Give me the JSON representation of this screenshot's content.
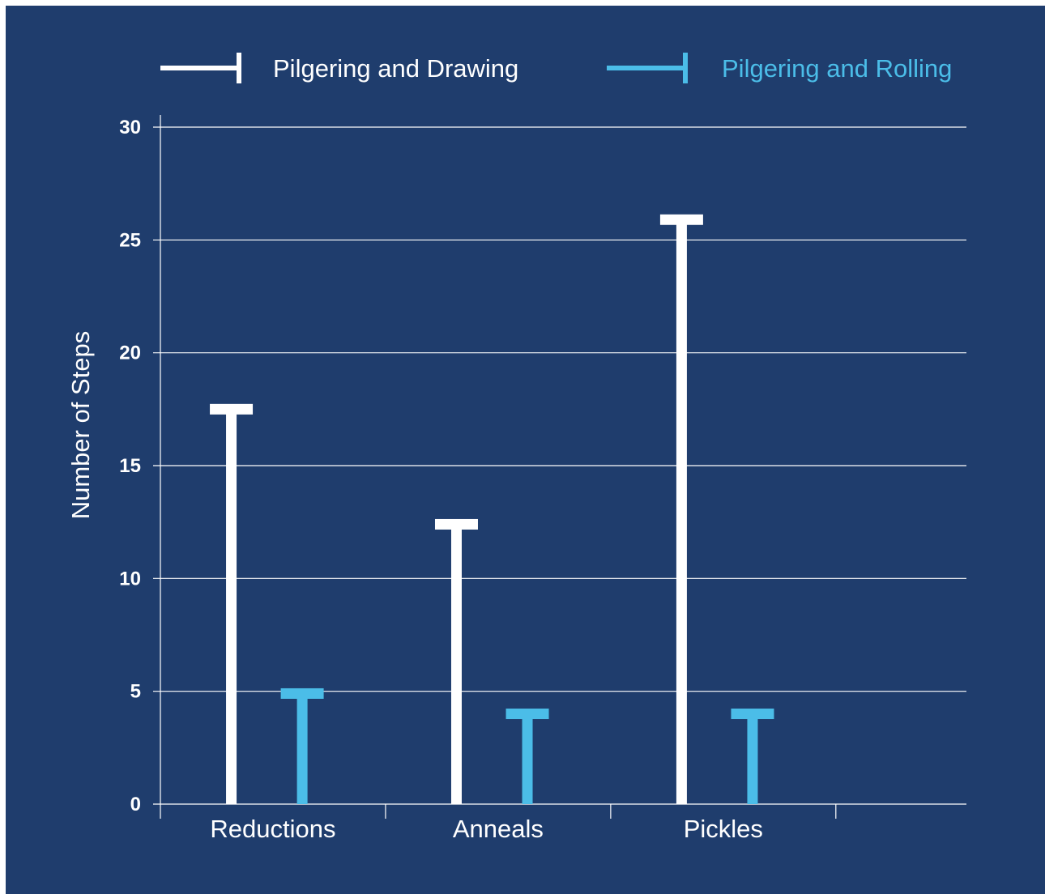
{
  "chart_data": {
    "type": "bar",
    "title": "",
    "xlabel": "",
    "ylabel": "Number of Steps",
    "categories": [
      "Reductions",
      "Anneals",
      "Pickles"
    ],
    "yticks": [
      "0",
      "5",
      "10",
      "15",
      "20",
      "25",
      "30"
    ],
    "ylim": [
      0,
      30
    ],
    "grid": "horizontal",
    "legend_position": "top",
    "series": [
      {
        "name": "Pilgering and Drawing",
        "values": [
          17.5,
          12.4,
          25.9
        ],
        "color": "#ffffff"
      },
      {
        "name": "Pilgering and Rolling",
        "values": [
          4.9,
          4.0,
          4.0
        ],
        "color": "#4bbde8"
      }
    ]
  },
  "colors": {
    "background": "#1f3d6d",
    "grid": "#ffffff"
  }
}
